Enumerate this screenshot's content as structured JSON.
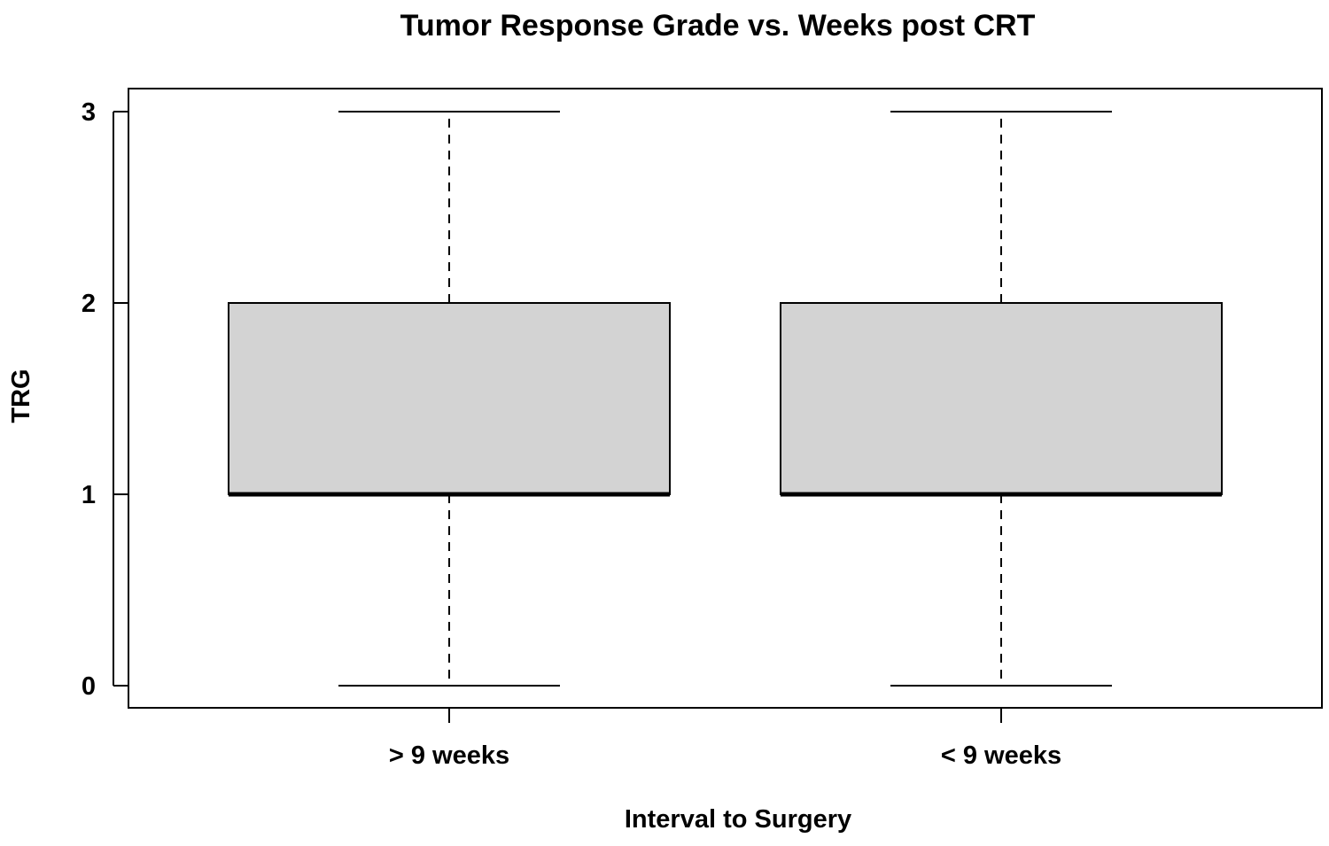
{
  "chart_data": {
    "type": "box",
    "title": "Tumor Response Grade vs. Weeks post CRT",
    "xlabel": "Interval to Surgery",
    "ylabel": "TRG",
    "ylim": [
      0,
      3
    ],
    "y_ticks": [
      "0",
      "1",
      "2",
      "3"
    ],
    "categories": [
      "> 9 weeks",
      "< 9 weeks"
    ],
    "boxes": [
      {
        "category": "> 9 weeks",
        "min": 0,
        "q1": 1,
        "median": 1,
        "q3": 2,
        "max": 3
      },
      {
        "category": "< 9 weeks",
        "min": 0,
        "q1": 1,
        "median": 1,
        "q3": 2,
        "max": 3
      }
    ],
    "box_fill": "#d3d3d3",
    "line_color": "#000000",
    "grid": false,
    "legend": "none"
  }
}
